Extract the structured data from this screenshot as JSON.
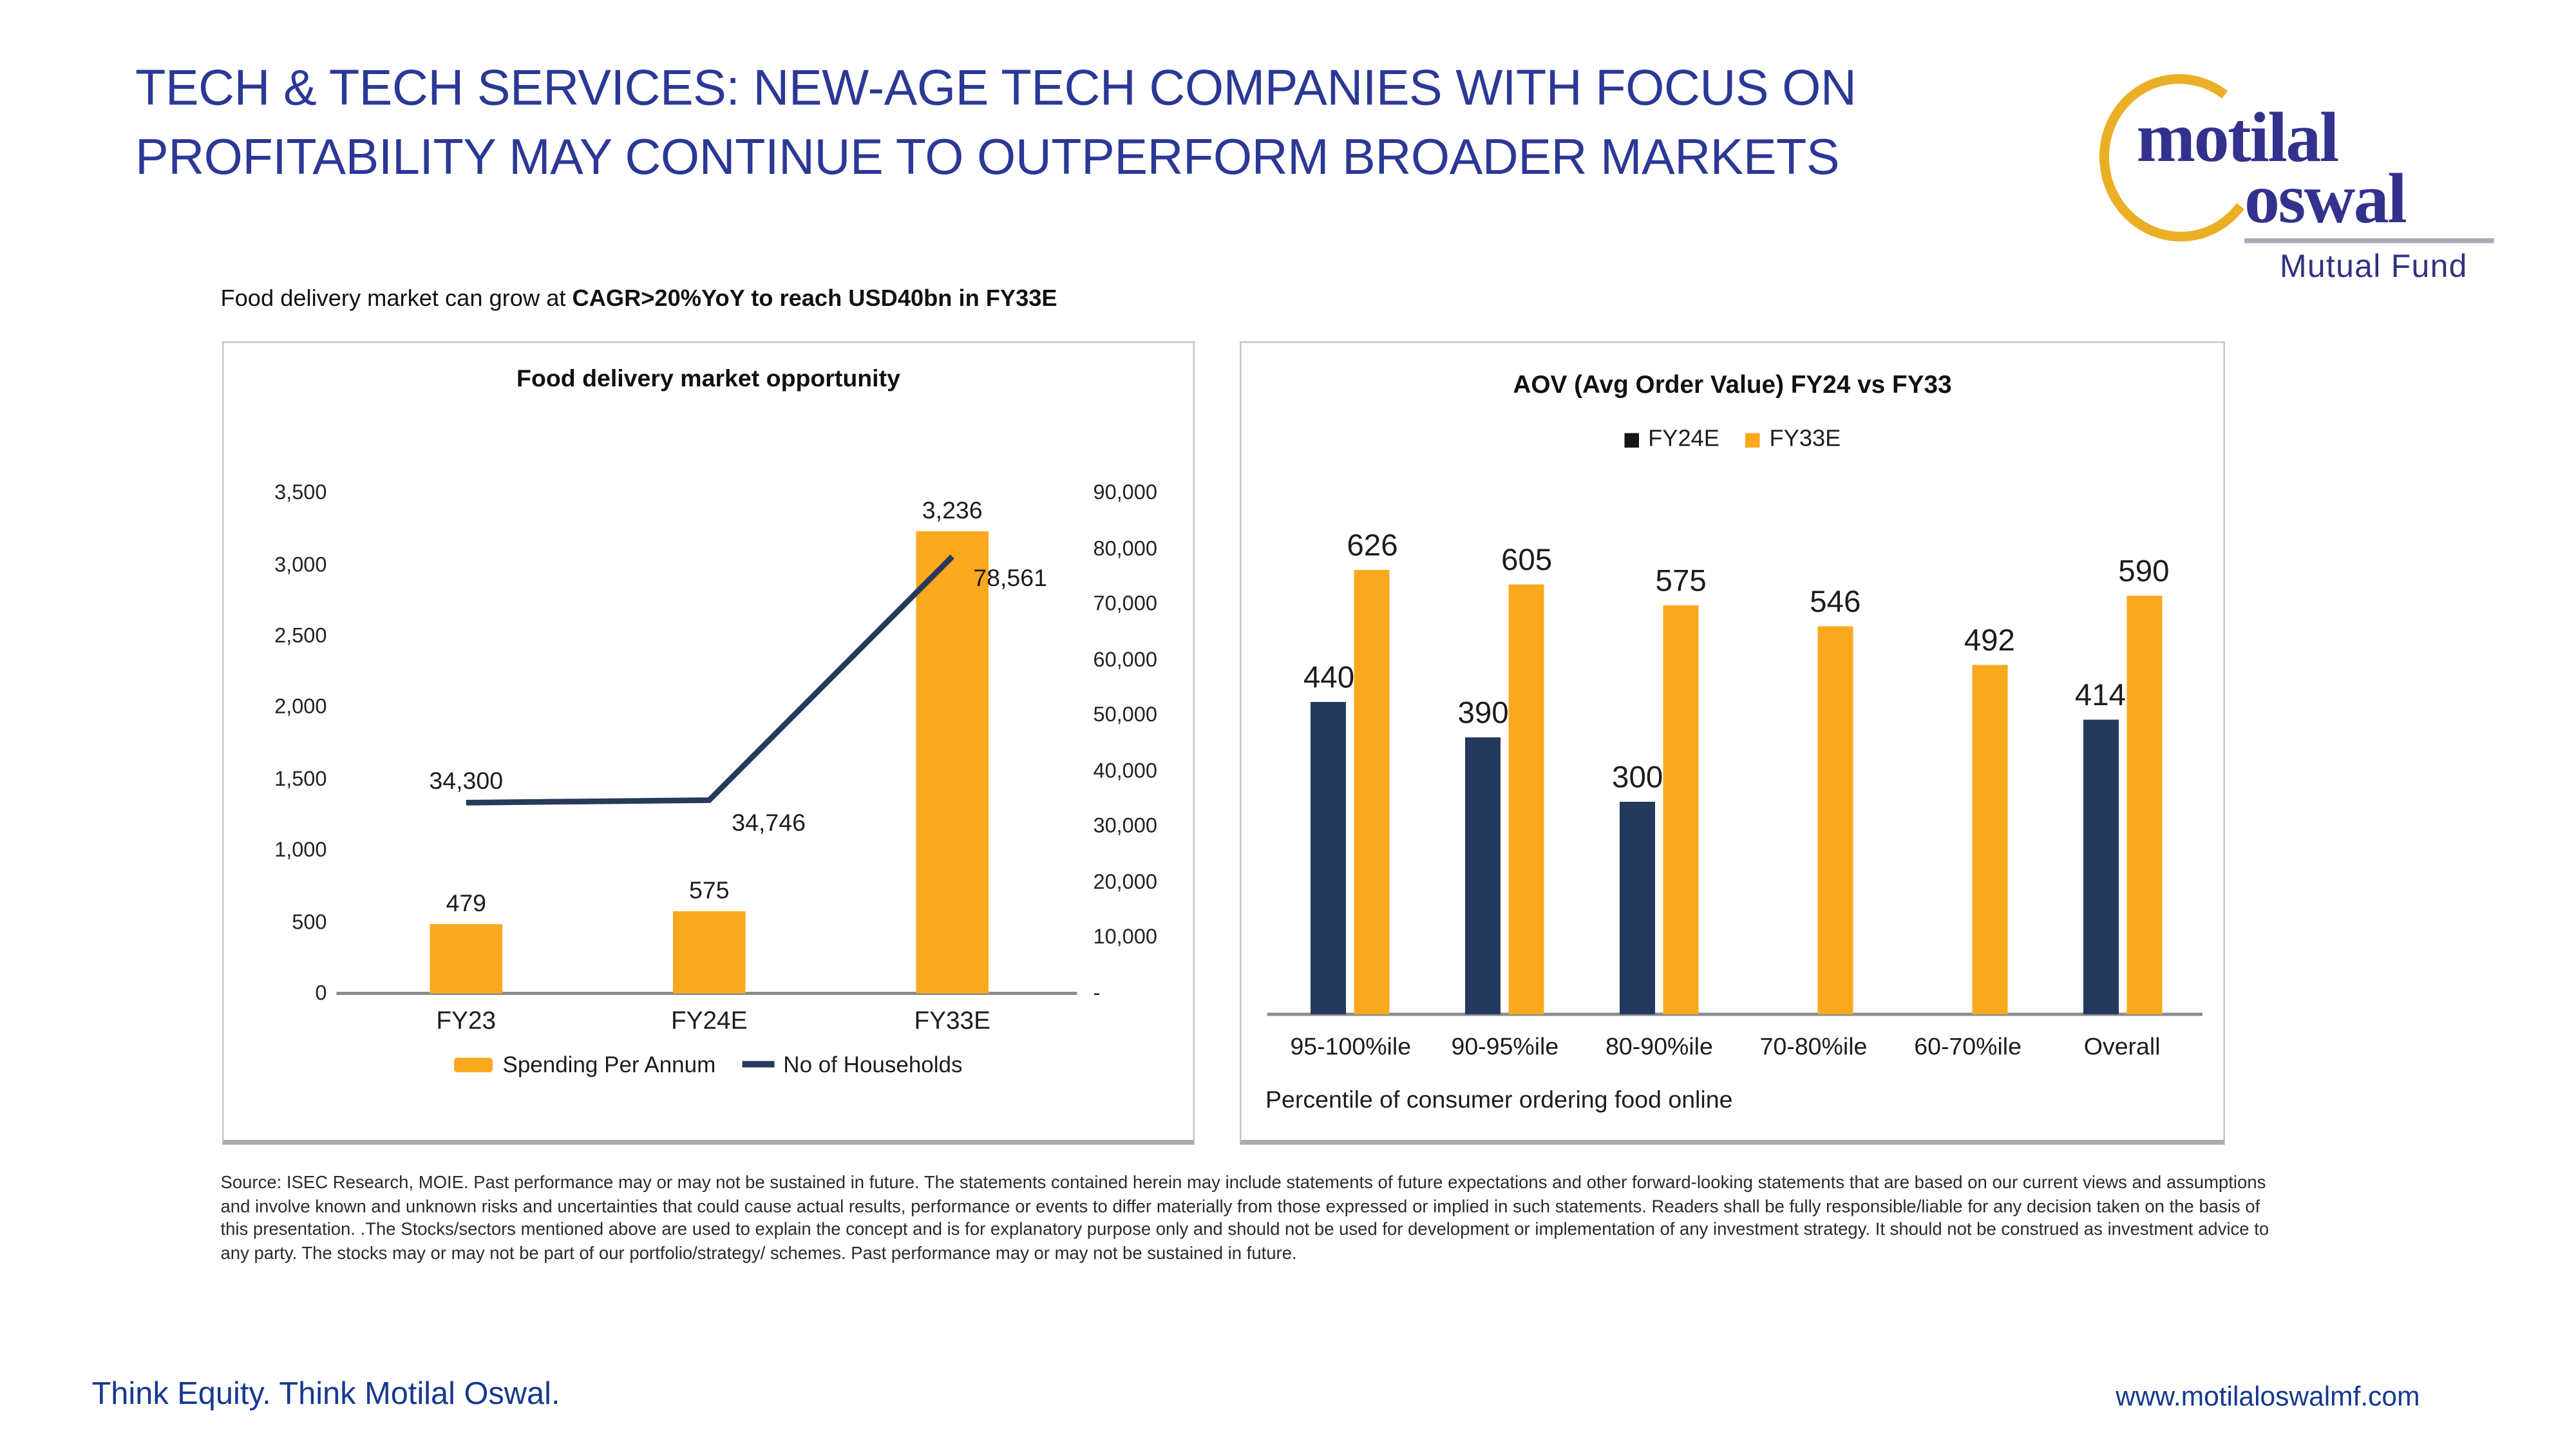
{
  "header": {
    "title_line1": "TECH & TECH SERVICES: NEW-AGE TECH COMPANIES WITH FOCUS ON",
    "title_line2": "PROFITABILITY MAY CONTINUE TO OUTPERFORM BROADER MARKETS"
  },
  "logo": {
    "word1": "motilal",
    "word2": "oswal",
    "tagline": "Mutual Fund",
    "navy": "#32328E",
    "gold": "#EBAF25"
  },
  "subtitle": {
    "normal": "Food delivery market can grow at ",
    "bold": "CAGR>20%YoY to reach USD40bn in FY33E"
  },
  "chart_data": [
    {
      "type": "bar+line",
      "title": "Food delivery market opportunity",
      "categories": [
        "FY23",
        "FY24E",
        "FY33E"
      ],
      "series": [
        {
          "name": "Spending Per Annum",
          "type": "bar",
          "axis": "left",
          "color": "#FAA91E",
          "values": [
            479,
            575,
            3236
          ]
        },
        {
          "name": "No of Households",
          "type": "line",
          "axis": "right",
          "color": "#27395C",
          "values": [
            34300,
            34746,
            78561
          ]
        }
      ],
      "left_axis": {
        "min": 0,
        "max": 3500,
        "step": 500
      },
      "right_axis": {
        "min": 0,
        "max": 90000,
        "step": 10000,
        "zero_label": "-"
      },
      "legend_position": "bottom",
      "grid": false
    },
    {
      "type": "bar",
      "title": "AOV (Avg Order Value) FY24 vs FY33",
      "categories": [
        "95-100%ile",
        "90-95%ile",
        "80-90%ile",
        "70-80%ile",
        "60-70%ile",
        "Overall"
      ],
      "series": [
        {
          "name": "FY24E",
          "color": "#24395E",
          "legend_color": "#161616",
          "values": [
            440,
            390,
            300,
            null,
            null,
            414
          ]
        },
        {
          "name": "FY33E",
          "color": "#FAA91E",
          "legend_color": "#FAA91E",
          "values": [
            626,
            605,
            575,
            546,
            492,
            590
          ]
        }
      ],
      "xlabel": "Percentile of consumer ordering food online",
      "legend_position": "top",
      "y_axis_visible": false,
      "grid": false
    }
  ],
  "disclaimer": "Source: ISEC Research, MOIE. Past performance may or may not be sustained in future. The statements contained herein may include statements of future expectations and other forward-looking statements that are based on our current views and assumptions and involve known and unknown risks and uncertainties that could cause actual results, performance or events to differ materially from those expressed or implied in such statements. Readers shall be fully responsible/liable for any decision taken on the basis of this presentation. .The Stocks/sectors mentioned above are used to explain the concept and is for explanatory purpose only and should not be used for development or implementation of any investment strategy. It should not be construed as investment advice to any party. The stocks may or may not be part of our portfolio/strategy/ schemes. Past performance may or may not be sustained in future.",
  "footer": {
    "tagline": "Think Equity. Think Motilal Oswal.",
    "website": "www.motilaloswalmf.com"
  }
}
